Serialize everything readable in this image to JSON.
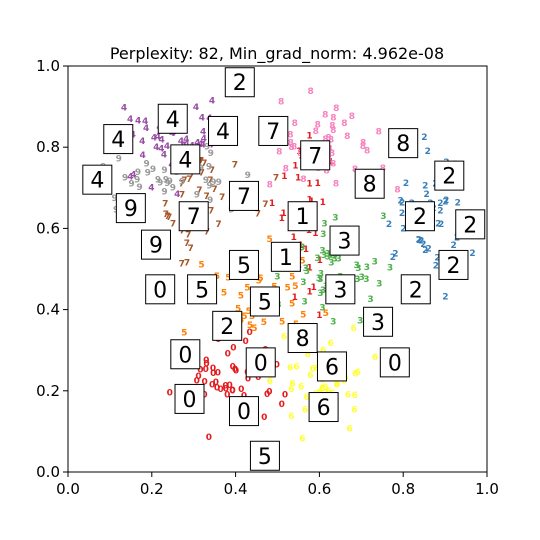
{
  "chart_data": {
    "type": "scatter",
    "title": "Perplexity: 82, Min_grad_norm: 4.962e-08",
    "xlim": [
      0.0,
      1.0
    ],
    "ylim": [
      0.0,
      1.0
    ],
    "xticks": [
      "0.0",
      "0.2",
      "0.4",
      "0.6",
      "0.8",
      "1.0"
    ],
    "yticks": [
      "0.0",
      "0.2",
      "0.4",
      "0.6",
      "0.8",
      "1.0"
    ],
    "grid": false,
    "palette": {
      "0": "#e41a1c",
      "1": "#e41a1c",
      "2": "#377eb8",
      "3": "#4daf4a",
      "4": "#984ea3",
      "5": "#ff7f00",
      "6": "#ffff33",
      "7": "#a65628",
      "8": "#f781bf",
      "9": "#999999"
    },
    "clusters": [
      {
        "digit": "0",
        "color": "#e41a1c",
        "count": 55,
        "cx": 0.38,
        "cy": 0.23,
        "sx": 0.06,
        "sy": 0.05
      },
      {
        "digit": "1",
        "color": "#e41a1c",
        "count": 40,
        "cx": 0.56,
        "cy": 0.64,
        "sx": 0.03,
        "sy": 0.1
      },
      {
        "digit": "2",
        "color": "#377eb8",
        "count": 45,
        "cx": 0.86,
        "cy": 0.62,
        "sx": 0.05,
        "sy": 0.08
      },
      {
        "digit": "3",
        "color": "#4daf4a",
        "count": 55,
        "cx": 0.64,
        "cy": 0.47,
        "sx": 0.06,
        "sy": 0.06
      },
      {
        "digit": "4",
        "color": "#984ea3",
        "count": 45,
        "cx": 0.25,
        "cy": 0.8,
        "sx": 0.07,
        "sy": 0.05
      },
      {
        "digit": "5",
        "color": "#ff7f00",
        "count": 40,
        "cx": 0.46,
        "cy": 0.43,
        "sx": 0.07,
        "sy": 0.06
      },
      {
        "digit": "6",
        "color": "#ffff33",
        "count": 50,
        "cx": 0.61,
        "cy": 0.24,
        "sx": 0.06,
        "sy": 0.06
      },
      {
        "digit": "7",
        "color": "#a65628",
        "count": 45,
        "cx": 0.33,
        "cy": 0.65,
        "sx": 0.06,
        "sy": 0.06
      },
      {
        "digit": "8",
        "color": "#f781bf",
        "count": 45,
        "cx": 0.62,
        "cy": 0.8,
        "sx": 0.07,
        "sy": 0.06
      },
      {
        "digit": "9",
        "color": "#999999",
        "count": 50,
        "cx": 0.25,
        "cy": 0.72,
        "sx": 0.08,
        "sy": 0.05
      }
    ],
    "thumbnails": [
      {
        "x": 0.41,
        "y": 0.96,
        "digit": "2"
      },
      {
        "x": 0.25,
        "y": 0.87,
        "digit": "4"
      },
      {
        "x": 0.12,
        "y": 0.82,
        "digit": "4"
      },
      {
        "x": 0.37,
        "y": 0.84,
        "digit": "4"
      },
      {
        "x": 0.49,
        "y": 0.84,
        "digit": "7"
      },
      {
        "x": 0.59,
        "y": 0.78,
        "digit": "7"
      },
      {
        "x": 0.8,
        "y": 0.81,
        "digit": "8"
      },
      {
        "x": 0.28,
        "y": 0.77,
        "digit": "4"
      },
      {
        "x": 0.07,
        "y": 0.72,
        "digit": "4"
      },
      {
        "x": 0.91,
        "y": 0.73,
        "digit": "2"
      },
      {
        "x": 0.72,
        "y": 0.71,
        "digit": "8"
      },
      {
        "x": 0.42,
        "y": 0.68,
        "digit": "7"
      },
      {
        "x": 0.15,
        "y": 0.65,
        "digit": "9"
      },
      {
        "x": 0.3,
        "y": 0.63,
        "digit": "7"
      },
      {
        "x": 0.56,
        "y": 0.63,
        "digit": "1"
      },
      {
        "x": 0.84,
        "y": 0.63,
        "digit": "2"
      },
      {
        "x": 0.96,
        "y": 0.61,
        "digit": "2"
      },
      {
        "x": 0.66,
        "y": 0.57,
        "digit": "3"
      },
      {
        "x": 0.21,
        "y": 0.56,
        "digit": "9"
      },
      {
        "x": 0.42,
        "y": 0.51,
        "digit": "5"
      },
      {
        "x": 0.52,
        "y": 0.53,
        "digit": "1"
      },
      {
        "x": 0.92,
        "y": 0.51,
        "digit": "2"
      },
      {
        "x": 0.22,
        "y": 0.45,
        "digit": "0"
      },
      {
        "x": 0.32,
        "y": 0.45,
        "digit": "5"
      },
      {
        "x": 0.47,
        "y": 0.42,
        "digit": "5"
      },
      {
        "x": 0.65,
        "y": 0.45,
        "digit": "3"
      },
      {
        "x": 0.83,
        "y": 0.45,
        "digit": "2"
      },
      {
        "x": 0.38,
        "y": 0.36,
        "digit": "2"
      },
      {
        "x": 0.74,
        "y": 0.37,
        "digit": "3"
      },
      {
        "x": 0.56,
        "y": 0.33,
        "digit": "8"
      },
      {
        "x": 0.28,
        "y": 0.29,
        "digit": "0"
      },
      {
        "x": 0.46,
        "y": 0.27,
        "digit": "0"
      },
      {
        "x": 0.63,
        "y": 0.26,
        "digit": "6"
      },
      {
        "x": 0.78,
        "y": 0.27,
        "digit": "0"
      },
      {
        "x": 0.29,
        "y": 0.18,
        "digit": "0"
      },
      {
        "x": 0.42,
        "y": 0.15,
        "digit": "0"
      },
      {
        "x": 0.61,
        "y": 0.16,
        "digit": "6"
      },
      {
        "x": 0.47,
        "y": 0.04,
        "digit": "5"
      }
    ]
  }
}
